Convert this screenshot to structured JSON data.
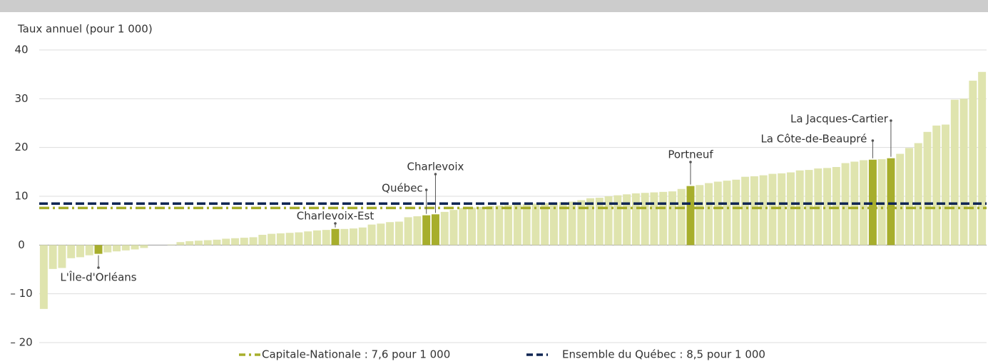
{
  "chart_data": {
    "type": "bar",
    "y_axis_label": "Taux annuel (pour 1 000)",
    "categories": [
      null,
      null,
      null,
      null,
      null,
      null,
      "L'Île-d'Orléans",
      null,
      null,
      null,
      null,
      null,
      null,
      null,
      null,
      null,
      null,
      null,
      null,
      null,
      null,
      null,
      null,
      null,
      null,
      null,
      null,
      null,
      null,
      null,
      null,
      null,
      "Charlevoix-Est",
      null,
      null,
      null,
      null,
      null,
      null,
      null,
      null,
      null,
      "Québec",
      "Charlevoix",
      null,
      null,
      null,
      null,
      null,
      null,
      null,
      null,
      null,
      null,
      null,
      null,
      null,
      null,
      null,
      null,
      null,
      null,
      null,
      null,
      null,
      null,
      null,
      null,
      null,
      null,
      null,
      "Portneuf",
      null,
      null,
      null,
      null,
      null,
      null,
      null,
      null,
      null,
      null,
      null,
      null,
      null,
      null,
      null,
      null,
      null,
      null,
      null,
      "La Côte-de-Beaupré",
      null,
      "La Jacques-Cartier",
      null,
      null,
      null,
      null,
      null,
      null,
      null,
      null,
      null,
      null
    ],
    "values": [
      -13.1,
      -4.9,
      -4.7,
      -2.7,
      -2.5,
      -2.1,
      -1.8,
      -1.5,
      -1.3,
      -1.1,
      -0.9,
      -0.6,
      0,
      0,
      0.1,
      0.6,
      0.8,
      0.9,
      1.0,
      1.1,
      1.3,
      1.4,
      1.5,
      1.6,
      2.1,
      2.3,
      2.4,
      2.5,
      2.6,
      2.8,
      3.0,
      3.1,
      3.3,
      3.3,
      3.4,
      3.6,
      4.2,
      4.4,
      4.7,
      4.8,
      5.7,
      5.9,
      6.1,
      6.3,
      6.8,
      7.2,
      7.6,
      7.7,
      7.8,
      8.0,
      8.1,
      8.2,
      8.3,
      8.4,
      8.5,
      8.6,
      8.7,
      8.8,
      8.9,
      9.2,
      9.6,
      9.7,
      10.0,
      10.2,
      10.4,
      10.6,
      10.7,
      10.8,
      10.9,
      11.0,
      11.5,
      12.1,
      12.3,
      12.7,
      13.0,
      13.2,
      13.4,
      14.0,
      14.1,
      14.3,
      14.6,
      14.7,
      14.9,
      15.3,
      15.4,
      15.7,
      15.8,
      16.0,
      16.8,
      17.1,
      17.4,
      17.5,
      17.6,
      17.8,
      18.7,
      19.9,
      20.9,
      23.2,
      24.5,
      24.7,
      29.8,
      30.0,
      33.7,
      35.5
    ],
    "color": "#dfe4ae",
    "highlight_color": "#a7ae2c",
    "ylim": [
      -20,
      40
    ],
    "yticks": [
      {
        "value": -20,
        "label": "– 20"
      },
      {
        "value": -10,
        "label": "– 10"
      },
      0,
      10,
      20,
      30,
      40
    ],
    "grid": true,
    "reference_lines": [
      {
        "name": "Capitale-Nationale : 7,6 pour 1 000",
        "value": 7.6,
        "color": "#a7ae2c",
        "style": "dash-dot"
      },
      {
        "name": "Ensemble du Québec : 8,5 pour 1 000",
        "value": 8.5,
        "color": "#0f2552",
        "style": "dashed"
      }
    ],
    "legend": "bottom"
  }
}
